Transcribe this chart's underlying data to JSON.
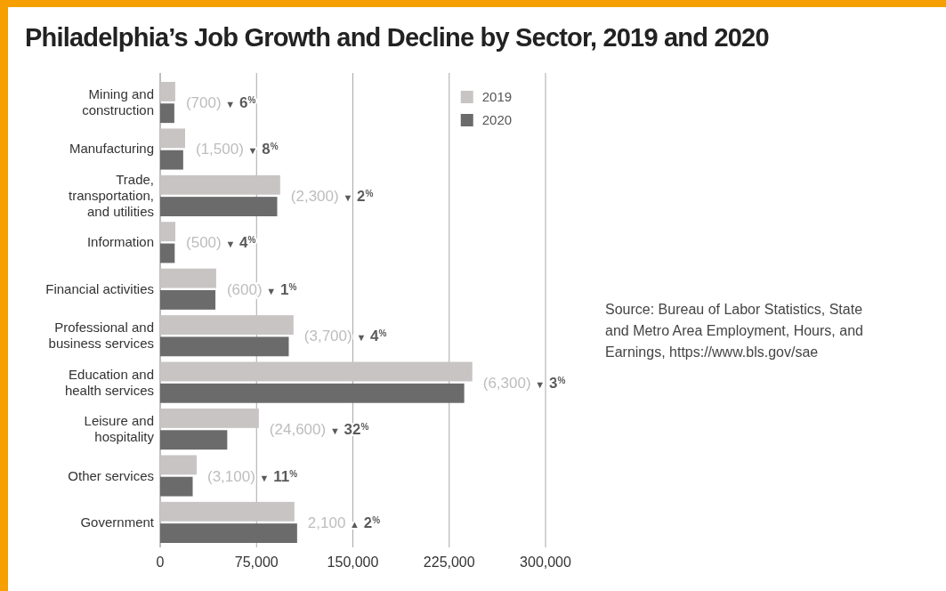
{
  "chart_data": {
    "type": "bar",
    "orientation": "horizontal",
    "title": "Philadelphia’s Job Growth and Decline by Sector, 2019 and 2020",
    "categories": [
      "Mining and construction",
      "Manufacturing",
      "Trade, transportation, and utilities",
      "Information",
      "Financial activities",
      "Professional and business services",
      "Education and health services",
      "Leisure and hospitality",
      "Other services",
      "Government"
    ],
    "series": [
      {
        "name": "2019",
        "color": "#c8c4c4",
        "values": [
          11700,
          19400,
          93400,
          11800,
          43600,
          103800,
          243000,
          76800,
          28400,
          104500
        ]
      },
      {
        "name": "2020",
        "color": "#6b6b6b",
        "values": [
          11000,
          17900,
          91100,
          11300,
          43000,
          100100,
          236700,
          52200,
          25300,
          106600
        ]
      }
    ],
    "xlim": [
      0,
      300000
    ],
    "xticks": [
      0,
      {
        "value": 75000,
        "label": "75,000"
      },
      {
        "value": 150000,
        "label": "150,000"
      },
      {
        "value": 225000,
        "label": "225,000"
      },
      {
        "value": 300000,
        "label": "300,000"
      }
    ],
    "grid": "x",
    "legend": "top right",
    "annotations": [
      "(700) ▼ 6$^{%}$",
      "(1,500) ▼ 8$^{%}$",
      "(2,300) ▼ 2$^{%}$",
      "(500) ▼ 4$^{%}$",
      "(600) ▼ 1$^{%}$",
      "(3,700) ▼ 4$^{%}$",
      "(6,300) ▼ 3$^{%}$",
      "(24,600) ▼ 32$^{%}$",
      "(3,100) ▼ 11$^{%}$",
      "2,100 ▲ 2$^{%}$",
      "Source: Bureau of Labor Statistics, State and Metro Area Employment, Hours, and Earnings, https://www.bls.gov/sae"
    ]
  }
}
